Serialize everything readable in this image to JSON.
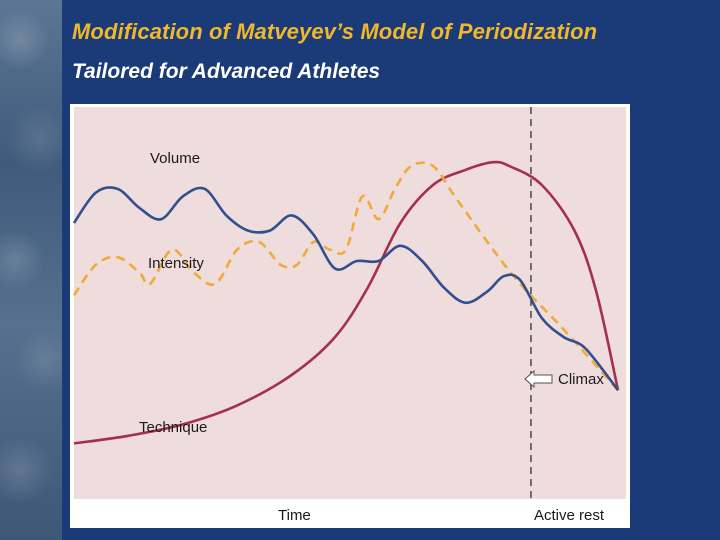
{
  "slide": {
    "title": "Modification of Matveyev’s Model of Periodization",
    "subtitle": "Tailored for Advanced Athletes"
  },
  "colors": {
    "background": "#1b3a78",
    "title": "#f0b82a",
    "plot_area": "#efdcdc",
    "volume": "#2f4f8f",
    "intensity": "#f1a93b",
    "technique": "#a5304e"
  },
  "chart_data": {
    "type": "line",
    "title": "",
    "xlabel": "Time",
    "xlabel_secondary": "Active rest",
    "ylabel": "",
    "xlim": [
      0,
      100
    ],
    "ylim": [
      0,
      100
    ],
    "grid": false,
    "series": [
      {
        "name": "Volume",
        "color": "#2f4f8f",
        "dash": false,
        "points": [
          [
            0,
            70
          ],
          [
            4,
            78
          ],
          [
            8,
            79
          ],
          [
            12,
            74
          ],
          [
            16,
            71
          ],
          [
            20,
            77
          ],
          [
            24,
            79
          ],
          [
            28,
            72
          ],
          [
            32,
            68
          ],
          [
            36,
            68
          ],
          [
            40,
            72
          ],
          [
            44,
            67
          ],
          [
            48,
            58
          ],
          [
            52,
            60
          ],
          [
            56,
            60
          ],
          [
            60,
            64
          ],
          [
            64,
            60
          ],
          [
            68,
            53
          ],
          [
            72,
            49
          ],
          [
            76,
            52
          ],
          [
            79,
            56
          ],
          [
            82,
            55
          ],
          [
            86,
            45
          ],
          [
            90,
            40
          ],
          [
            94,
            37
          ],
          [
            100,
            26
          ]
        ]
      },
      {
        "name": "Intensity",
        "color": "#f1a93b",
        "dash": true,
        "points": [
          [
            0,
            51
          ],
          [
            4,
            59
          ],
          [
            8,
            61
          ],
          [
            12,
            57
          ],
          [
            14,
            54
          ],
          [
            18,
            63
          ],
          [
            22,
            57
          ],
          [
            26,
            54
          ],
          [
            30,
            63
          ],
          [
            34,
            65
          ],
          [
            38,
            59
          ],
          [
            41,
            59
          ],
          [
            44,
            65
          ],
          [
            47,
            63
          ],
          [
            50,
            63
          ],
          [
            53,
            77
          ],
          [
            56,
            71
          ],
          [
            59,
            79
          ],
          [
            62,
            85
          ],
          [
            66,
            85
          ],
          [
            70,
            77
          ],
          [
            76,
            65
          ],
          [
            82,
            54
          ],
          [
            90,
            42
          ],
          [
            100,
            26
          ]
        ]
      },
      {
        "name": "Technique",
        "color": "#a5304e",
        "dash": false,
        "points": [
          [
            0,
            12
          ],
          [
            10,
            14
          ],
          [
            20,
            17
          ],
          [
            30,
            22
          ],
          [
            40,
            30
          ],
          [
            48,
            40
          ],
          [
            54,
            53
          ],
          [
            60,
            70
          ],
          [
            66,
            80
          ],
          [
            72,
            84
          ],
          [
            77,
            86
          ],
          [
            80,
            85
          ],
          [
            86,
            80
          ],
          [
            92,
            68
          ],
          [
            96,
            52
          ],
          [
            100,
            26
          ]
        ]
      }
    ],
    "annotations": [
      {
        "text": "Climax",
        "x": 84,
        "type": "vertical-dashed-line-with-arrow"
      }
    ],
    "series_labels": [
      "Volume",
      "Intensity",
      "Technique"
    ]
  }
}
